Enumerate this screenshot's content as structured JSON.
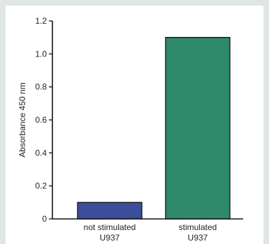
{
  "chart_data": {
    "type": "bar",
    "ylabel": "Absorbance 450 nm",
    "xlabel": "",
    "ylim": [
      0,
      1.2
    ],
    "yticks": [
      "0",
      "0.2",
      "0.4",
      "0.6",
      "0.8",
      "1.0",
      "1.2"
    ],
    "categories": [
      {
        "line1": "not stimulated",
        "line2": "U937"
      },
      {
        "line1": "stimulated",
        "line2": "U937"
      }
    ],
    "values": [
      0.1,
      1.1
    ],
    "colors": [
      "#3c4d9b",
      "#2e8a6b"
    ],
    "grid": false
  }
}
